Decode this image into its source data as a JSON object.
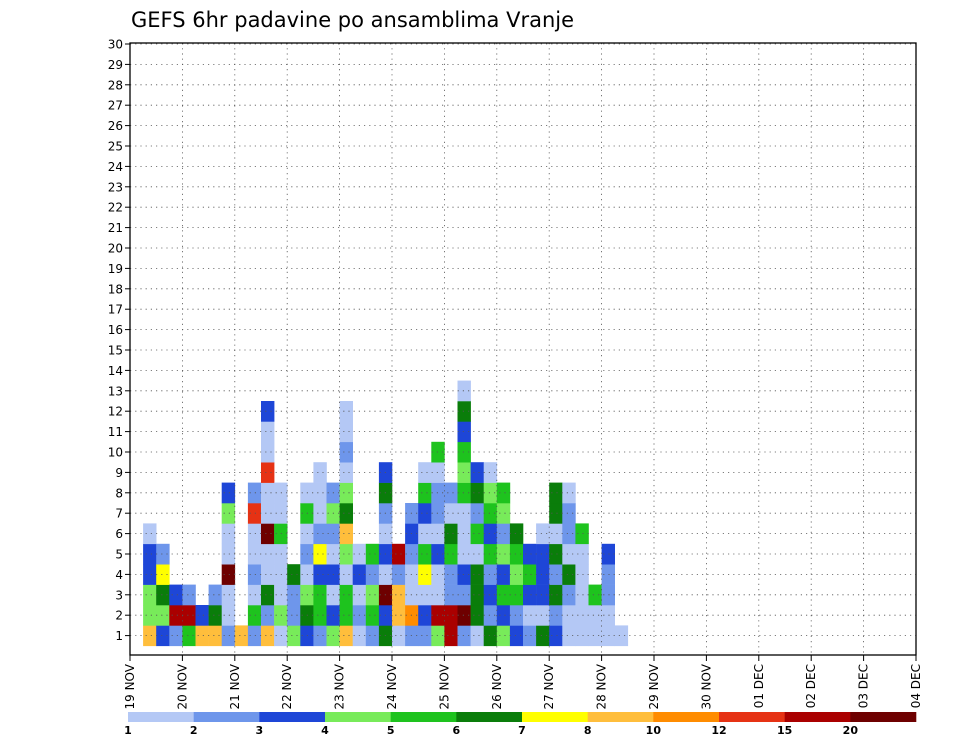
{
  "chart_data": {
    "type": "heatmap",
    "title": "GEFS 6hr padavine po ansamblima Vranje",
    "x_tick_labels": [
      "19 NOV",
      "20 NOV",
      "21 NOV",
      "22 NOV",
      "23 NOV",
      "24 NOV",
      "25 NOV",
      "26 NOV",
      "27 NOV",
      "28 NOV",
      "29 NOV",
      "30 NOV",
      "01 DEC",
      "02 DEC",
      "03 DEC",
      "04 DEC"
    ],
    "y_tick_labels": [
      "1",
      "2",
      "3",
      "4",
      "5",
      "6",
      "7",
      "8",
      "9",
      "10",
      "11",
      "12",
      "13",
      "14",
      "15",
      "16",
      "17",
      "18",
      "19",
      "20",
      "21",
      "22",
      "23",
      "24",
      "25",
      "26",
      "27",
      "28",
      "29",
      "30"
    ],
    "x_range": [
      "19 NOV",
      "04 DEC"
    ],
    "y_range": [
      1,
      30
    ],
    "x_step_hours": 6,
    "grid": true,
    "colorbar": {
      "labels": [
        "1",
        "2",
        "3",
        "4",
        "5",
        "6",
        "7",
        "8",
        "10",
        "12",
        "15",
        "20"
      ],
      "colors": [
        "#b4c8f5",
        "#6e96eb",
        "#1e46d7",
        "#78eb5a",
        "#1ec31e",
        "#0a7d0a",
        "#ffff00",
        "#ffbe3c",
        "#ff8c00",
        "#e63214",
        "#aa0000",
        "#6e0000"
      ]
    },
    "cells": [
      [
        1,
        1,
        "8.5|4.5|4|3.5|3|1.5"
      ],
      [
        1,
        2,
        "3.5|4.5|6|7|2"
      ],
      [
        1,
        3,
        "2.5|15.5|3"
      ],
      [
        1,
        4,
        "5|15|2"
      ],
      [
        1,
        5,
        "8|3"
      ],
      [
        1,
        6,
        "8|6|2.5"
      ],
      [
        1,
        7,
        "2|1|1|20|1.5|1|4.5|3"
      ],
      [
        1,
        8,
        "8"
      ],
      [
        1,
        9,
        "2.5|5|1|2|1|1|12|2"
      ],
      [
        1,
        10,
        "9|2|6|1.5|1|20|1|1|12|1|1|3"
      ],
      [
        1,
        11,
        "1|4|1|1|1|5|1.5|1"
      ],
      [
        1,
        12,
        "4|2|2|6"
      ],
      [
        1,
        13,
        "3|6|4|1|2|1|5|1"
      ],
      [
        1,
        14,
        "2|5|5|3|7|2|1|1|1"
      ],
      [
        1,
        15,
        "4|3|1|3|1|2|4|2"
      ],
      [
        1,
        16,
        "8|5|5|1.5|4|8|6|4|1|2|1|1"
      ],
      [
        1,
        17,
        "1|2|1|3|1"
      ],
      [
        1,
        18,
        "2|5|4|2|5"
      ],
      [
        1,
        19,
        "6|3|20|1|3|1|2|6|3"
      ],
      [
        1,
        20,
        "1|8|8|2|15"
      ],
      [
        1,
        21,
        "2|10|1|1|2|3|2"
      ],
      [
        1,
        22,
        "2|3|1|7|5|1|3|5|1"
      ],
      [
        1,
        23,
        "4|15|1|1|3|1|2|2|1|5"
      ],
      [
        1,
        24,
        "15|15|2|2|5|6|1|2"
      ],
      [
        1,
        25,
        "2|20|2|3|1|1|1|5|4|5|3|6|1"
      ],
      [
        1,
        26,
        "1|6|6|6|1|5|2|6|3"
      ],
      [
        1,
        27,
        "6|2|3|2|5|3|5|4|1"
      ],
      [
        1,
        28,
        "4|3|5|3|4|2|4|5"
      ],
      [
        1,
        29,
        "3|2|5|4|5|6"
      ],
      [
        1,
        30,
        "2|1|3|5|3"
      ],
      [
        1,
        31,
        "6|1|3|3|3|1"
      ],
      [
        1,
        32,
        "3|2|6|2|6|1|6|6"
      ],
      [
        1,
        33,
        "1|1|2|6|1|2|2|1"
      ],
      [
        1,
        34,
        "1|1|1|1|1|5"
      ],
      [
        1,
        35,
        "1|1|5"
      ],
      [
        1,
        36,
        "1|1|2|2|3"
      ],
      [
        1,
        37,
        "1"
      ]
    ]
  }
}
